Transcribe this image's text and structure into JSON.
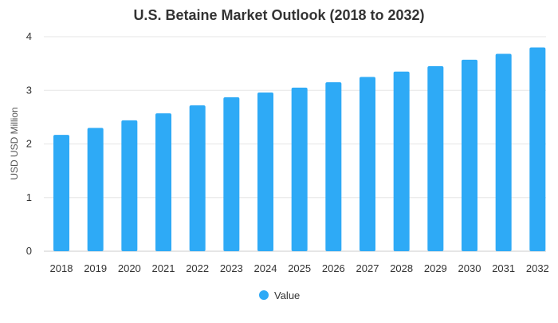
{
  "chart_data": {
    "type": "bar",
    "title": "U.S. Betaine Market Outlook (2018 to 2032)",
    "xlabel": "",
    "ylabel": "USD USD Million",
    "ylim": [
      0,
      4
    ],
    "yticks": [
      0,
      1,
      2,
      3,
      4
    ],
    "grid": true,
    "legend_position": "bottom-center",
    "categories": [
      "2018",
      "2019",
      "2020",
      "2021",
      "2022",
      "2023",
      "2024",
      "2025",
      "2026",
      "2027",
      "2028",
      "2029",
      "2030",
      "2031",
      "2032"
    ],
    "series": [
      {
        "name": "Value",
        "color": "#2eaaf6",
        "values": [
          2.17,
          2.3,
          2.44,
          2.57,
          2.72,
          2.87,
          2.96,
          3.05,
          3.15,
          3.25,
          3.35,
          3.45,
          3.57,
          3.68,
          3.8
        ]
      }
    ]
  }
}
